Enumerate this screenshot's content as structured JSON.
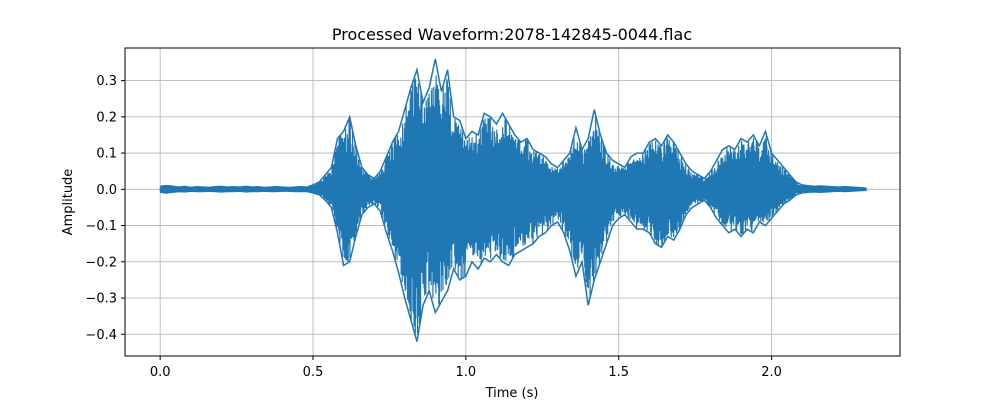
{
  "chart_data": {
    "type": "line",
    "title": "Processed Waveform:2078-142845-0044.flac",
    "xlabel": "Time (s)",
    "ylabel": "Amplitude",
    "xlim": [
      -0.115,
      2.42
    ],
    "ylim": [
      -0.46,
      0.39
    ],
    "grid": true,
    "x_ticks": [
      0.0,
      0.5,
      1.0,
      1.5,
      2.0
    ],
    "x_tick_labels": [
      "0.0",
      "0.5",
      "1.0",
      "1.5",
      "2.0"
    ],
    "y_ticks": [
      0.3,
      0.2,
      0.1,
      0.0,
      -0.1,
      -0.2,
      -0.3,
      -0.4
    ],
    "y_tick_labels": [
      "0.3",
      "0.2",
      "0.1",
      "0.0",
      "−0.1",
      "−0.2",
      "−0.3",
      "−0.4"
    ],
    "line_color": "#1f77b4",
    "series": [
      {
        "x": [
          0.0,
          0.02,
          0.04,
          0.06,
          0.08,
          0.1,
          0.12,
          0.14,
          0.16,
          0.18,
          0.2,
          0.22,
          0.24,
          0.26,
          0.28,
          0.3,
          0.32,
          0.34,
          0.36,
          0.38,
          0.4,
          0.42,
          0.44,
          0.46,
          0.48,
          0.5,
          0.52,
          0.54,
          0.56,
          0.58,
          0.6,
          0.62,
          0.64,
          0.66,
          0.68,
          0.7,
          0.72,
          0.74,
          0.76,
          0.78,
          0.8,
          0.82,
          0.84,
          0.86,
          0.88,
          0.9,
          0.92,
          0.94,
          0.96,
          0.98,
          1.0,
          1.02,
          1.04,
          1.06,
          1.08,
          1.1,
          1.12,
          1.14,
          1.16,
          1.18,
          1.2,
          1.22,
          1.24,
          1.26,
          1.28,
          1.3,
          1.32,
          1.34,
          1.36,
          1.38,
          1.4,
          1.42,
          1.44,
          1.46,
          1.48,
          1.5,
          1.52,
          1.54,
          1.56,
          1.58,
          1.6,
          1.62,
          1.64,
          1.66,
          1.68,
          1.7,
          1.72,
          1.74,
          1.76,
          1.78,
          1.8,
          1.82,
          1.84,
          1.86,
          1.88,
          1.9,
          1.92,
          1.94,
          1.96,
          1.98,
          2.0,
          2.02,
          2.04,
          2.06,
          2.08,
          2.1,
          2.12,
          2.14,
          2.16,
          2.18,
          2.2,
          2.22,
          2.24,
          2.26,
          2.28,
          2.3,
          2.31
        ],
        "upper": [
          0.008,
          0.01,
          0.009,
          0.006,
          0.008,
          0.005,
          0.007,
          0.006,
          0.005,
          0.007,
          0.008,
          0.006,
          0.007,
          0.006,
          0.008,
          0.006,
          0.007,
          0.005,
          0.006,
          0.007,
          0.006,
          0.005,
          0.006,
          0.007,
          0.006,
          0.012,
          0.02,
          0.04,
          0.06,
          0.14,
          0.16,
          0.2,
          0.12,
          0.06,
          0.04,
          0.03,
          0.05,
          0.09,
          0.13,
          0.16,
          0.22,
          0.28,
          0.33,
          0.24,
          0.28,
          0.36,
          0.27,
          0.33,
          0.2,
          0.19,
          0.14,
          0.16,
          0.15,
          0.21,
          0.2,
          0.18,
          0.21,
          0.18,
          0.15,
          0.13,
          0.14,
          0.11,
          0.1,
          0.09,
          0.07,
          0.06,
          0.08,
          0.1,
          0.17,
          0.11,
          0.14,
          0.22,
          0.15,
          0.1,
          0.08,
          0.07,
          0.06,
          0.09,
          0.1,
          0.1,
          0.13,
          0.14,
          0.12,
          0.15,
          0.13,
          0.1,
          0.07,
          0.05,
          0.04,
          0.03,
          0.05,
          0.08,
          0.11,
          0.12,
          0.11,
          0.14,
          0.13,
          0.15,
          0.12,
          0.16,
          0.1,
          0.08,
          0.06,
          0.04,
          0.02,
          0.012,
          0.01,
          0.008,
          0.009,
          0.008,
          0.007,
          0.006,
          0.007,
          0.006,
          0.005,
          0.004,
          0.003
        ],
        "lower": [
          -0.008,
          -0.01,
          -0.008,
          -0.006,
          -0.007,
          -0.005,
          -0.006,
          -0.006,
          -0.005,
          -0.006,
          -0.007,
          -0.006,
          -0.006,
          -0.005,
          -0.007,
          -0.006,
          -0.006,
          -0.005,
          -0.006,
          -0.006,
          -0.005,
          -0.005,
          -0.006,
          -0.006,
          -0.006,
          -0.01,
          -0.015,
          -0.03,
          -0.05,
          -0.12,
          -0.21,
          -0.2,
          -0.13,
          -0.07,
          -0.05,
          -0.04,
          -0.06,
          -0.12,
          -0.17,
          -0.23,
          -0.3,
          -0.36,
          -0.42,
          -0.32,
          -0.28,
          -0.34,
          -0.31,
          -0.28,
          -0.22,
          -0.25,
          -0.24,
          -0.2,
          -0.22,
          -0.19,
          -0.2,
          -0.18,
          -0.2,
          -0.21,
          -0.18,
          -0.17,
          -0.16,
          -0.15,
          -0.13,
          -0.12,
          -0.1,
          -0.09,
          -0.12,
          -0.17,
          -0.24,
          -0.2,
          -0.32,
          -0.25,
          -0.2,
          -0.15,
          -0.1,
          -0.08,
          -0.07,
          -0.09,
          -0.11,
          -0.11,
          -0.12,
          -0.15,
          -0.16,
          -0.13,
          -0.14,
          -0.11,
          -0.07,
          -0.05,
          -0.04,
          -0.03,
          -0.05,
          -0.08,
          -0.1,
          -0.12,
          -0.11,
          -0.13,
          -0.11,
          -0.12,
          -0.09,
          -0.1,
          -0.08,
          -0.06,
          -0.04,
          -0.03,
          -0.015,
          -0.01,
          -0.008,
          -0.007,
          -0.008,
          -0.007,
          -0.006,
          -0.005,
          -0.006,
          -0.005,
          -0.004,
          -0.003,
          -0.003
        ]
      }
    ]
  }
}
